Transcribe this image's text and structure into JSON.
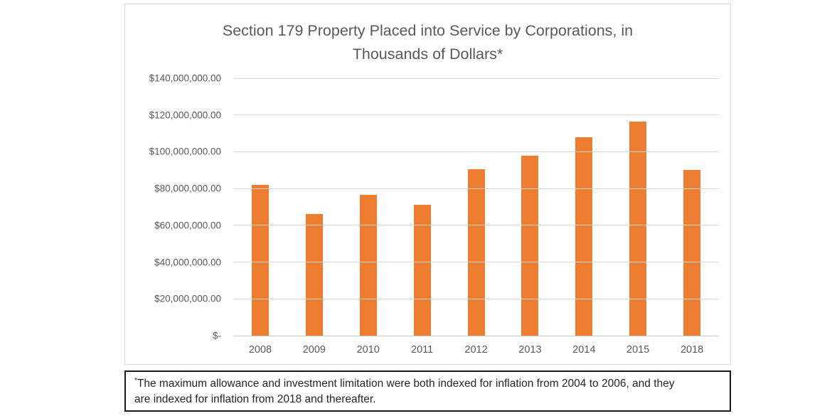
{
  "chart_data": {
    "type": "bar",
    "title": "Section 179 Property Placed into Service by Corporations, in Thousands of Dollars*",
    "title_lines": [
      "Section 179 Property Placed into Service by Corporations, in",
      "Thousands of Dollars*"
    ],
    "categories": [
      "2008",
      "2009",
      "2010",
      "2011",
      "2012",
      "2013",
      "2014",
      "2015",
      "2018"
    ],
    "values": [
      82000000,
      66000000,
      76500000,
      71000000,
      90500000,
      98000000,
      108000000,
      116500000,
      90000000
    ],
    "xlabel": "",
    "ylabel": "",
    "ylim": [
      0,
      140000000
    ],
    "y_tick_step": 20000000,
    "y_tick_labels": [
      "$140,000,000.00",
      "$120,000,000.00",
      "$100,000,000.00",
      "$80,000,000.00",
      "$60,000,000.00",
      "$40,000,000.00",
      "$20,000,000.00",
      "$-"
    ],
    "grid": true,
    "legend_position": "none",
    "bar_color": "#ED7D31",
    "gridline_color": "#D9D9D9",
    "axis_text_color": "#595959",
    "title_color": "#595959"
  },
  "footnote": {
    "marker": "*",
    "text": "The maximum allowance and investment limitation were both indexed for inflation from 2004 to 2006, and they are indexed for inflation from 2018 and thereafter."
  }
}
